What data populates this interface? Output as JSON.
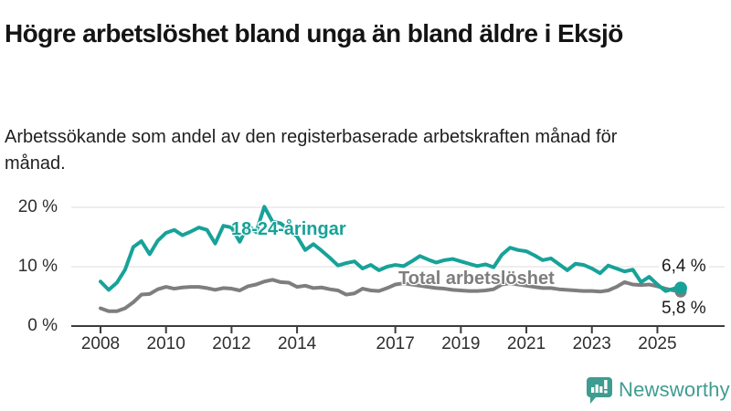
{
  "header": {
    "title": "Högre arbetslöshet bland unga än bland äldre i Eksjö",
    "subtitle": "Arbetssökande som andel av den registerbaserade arbetskraften månad för månad."
  },
  "chart_data": {
    "type": "line",
    "title": "Högre arbetslöshet bland unga än bland äldre i Eksjö",
    "xlabel": "",
    "ylabel": "",
    "unit": "%",
    "grid": "horizontal",
    "legend_position": "inline-labels",
    "xlim": [
      2007.9,
      2025.9
    ],
    "ylim": [
      0,
      21
    ],
    "x_ticks": [
      {
        "year": 2008,
        "label": "2008"
      },
      {
        "year": 2010,
        "label": "2010"
      },
      {
        "year": 2012,
        "label": "2012"
      },
      {
        "year": 2014,
        "label": "2014"
      },
      {
        "year": 2017,
        "label": "2017"
      },
      {
        "year": 2019,
        "label": "2019"
      },
      {
        "year": 2021,
        "label": "2021"
      },
      {
        "year": 2023,
        "label": "2023"
      },
      {
        "year": 2025,
        "label": "2025"
      }
    ],
    "y_ticks": [
      {
        "value": 0,
        "label": "0 %"
      },
      {
        "value": 10,
        "label": "10 %"
      },
      {
        "value": 20,
        "label": "20 %"
      }
    ],
    "x": [
      2008,
      2008.25,
      2008.5,
      2008.75,
      2009,
      2009.25,
      2009.5,
      2009.75,
      2010,
      2010.25,
      2010.5,
      2010.75,
      2011,
      2011.25,
      2011.5,
      2011.75,
      2012,
      2012.25,
      2012.5,
      2012.75,
      2013,
      2013.25,
      2013.5,
      2013.75,
      2014,
      2014.25,
      2014.5,
      2014.75,
      2015,
      2015.25,
      2015.5,
      2015.75,
      2016,
      2016.25,
      2016.5,
      2016.75,
      2017,
      2017.25,
      2017.5,
      2017.75,
      2018,
      2018.25,
      2018.5,
      2018.75,
      2019,
      2019.25,
      2019.5,
      2019.75,
      2020,
      2020.25,
      2020.5,
      2020.75,
      2021,
      2021.25,
      2021.5,
      2021.75,
      2022,
      2022.25,
      2022.5,
      2022.75,
      2023,
      2023.25,
      2023.5,
      2023.75,
      2024,
      2024.25,
      2024.5,
      2024.75,
      2025,
      2025.25,
      2025.5,
      2025.67
    ],
    "series": [
      {
        "name": "18-24-åringar",
        "color": "#17a299",
        "end_label": "6,4 %",
        "end_value": 6.4,
        "values": [
          7.5,
          6.1,
          7.3,
          9.5,
          13.3,
          14.3,
          12.1,
          14.4,
          15.7,
          16.2,
          15.3,
          15.9,
          16.6,
          16.2,
          13.9,
          16.9,
          16.6,
          14.2,
          17.0,
          15.8,
          20.1,
          17.6,
          17.3,
          16.2,
          15.1,
          12.8,
          13.8,
          12.7,
          11.5,
          10.2,
          10.6,
          10.9,
          9.7,
          10.3,
          9.4,
          10.0,
          10.3,
          10.1,
          10.9,
          11.8,
          11.2,
          10.7,
          11.1,
          11.3,
          10.9,
          10.5,
          10.1,
          10.4,
          9.9,
          12.0,
          13.2,
          12.8,
          12.6,
          11.9,
          11.1,
          11.4,
          10.4,
          9.4,
          10.5,
          10.3,
          9.7,
          8.9,
          10.2,
          9.7,
          9.2,
          9.5,
          7.4,
          8.3,
          7.0,
          5.9,
          6.3,
          6.4
        ]
      },
      {
        "name": "Total arbetslöshet",
        "color": "#7e7e7e",
        "end_label": "5,8 %",
        "end_value": 5.8,
        "values": [
          3.0,
          2.5,
          2.5,
          3.0,
          4.0,
          5.3,
          5.4,
          6.2,
          6.6,
          6.3,
          6.5,
          6.6,
          6.6,
          6.4,
          6.1,
          6.4,
          6.3,
          6.0,
          6.7,
          7.0,
          7.5,
          7.8,
          7.4,
          7.3,
          6.6,
          6.8,
          6.4,
          6.5,
          6.2,
          6.0,
          5.3,
          5.5,
          6.3,
          6.0,
          5.9,
          6.4,
          7.0,
          7.2,
          7.0,
          6.8,
          6.6,
          6.4,
          6.3,
          6.1,
          6.0,
          5.9,
          5.9,
          6.0,
          6.2,
          7.0,
          7.2,
          7.0,
          6.8,
          6.6,
          6.4,
          6.4,
          6.2,
          6.1,
          6.0,
          5.9,
          5.9,
          5.8,
          6.0,
          6.6,
          7.4,
          7.0,
          6.9,
          7.0,
          6.7,
          6.3,
          6.0,
          5.8
        ]
      }
    ],
    "axis_color": "#3c3c3c",
    "gridline_color": "#dcdcdc"
  },
  "footer": {
    "brand": "Newsworthy",
    "brand_color": "#3f9c90",
    "logo_icon": "bar-chart-exclamation-bubble-icon"
  }
}
